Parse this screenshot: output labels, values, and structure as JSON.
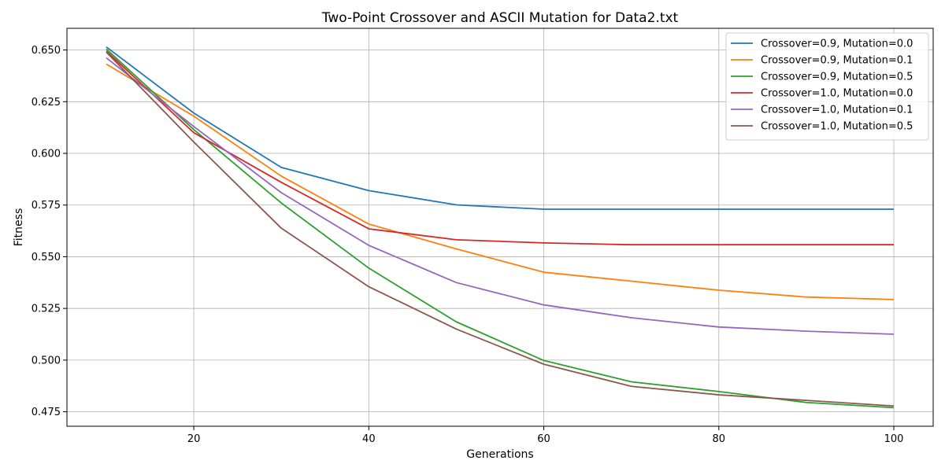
{
  "chart_data": {
    "type": "line",
    "title": "Two-Point Crossover and ASCII Mutation for Data2.txt",
    "xlabel": "Generations",
    "ylabel": "Fitness",
    "xlim": [
      5.5,
      104.5
    ],
    "ylim": [
      0.468,
      0.6605
    ],
    "xticks": [
      20,
      40,
      60,
      80,
      100
    ],
    "yticks": [
      0.475,
      0.5,
      0.525,
      0.55,
      0.575,
      0.6,
      0.625,
      0.65
    ],
    "ytick_labels": [
      "0.475",
      "0.500",
      "0.525",
      "0.550",
      "0.575",
      "0.600",
      "0.625",
      "0.650"
    ],
    "grid": true,
    "legend_position": "top-right",
    "x": [
      10,
      20,
      30,
      40,
      50,
      60,
      70,
      80,
      90,
      100
    ],
    "series": [
      {
        "name": "Crossover=0.9, Mutation=0.0",
        "color": "#1f77b4",
        "values": [
          0.6515,
          0.6195,
          0.5932,
          0.582,
          0.5751,
          0.573,
          0.573,
          0.573,
          0.573,
          0.573
        ]
      },
      {
        "name": "Crossover=0.9, Mutation=0.1",
        "color": "#ff7f0e",
        "values": [
          0.6432,
          0.618,
          0.589,
          0.5658,
          0.5538,
          0.5425,
          0.5382,
          0.5338,
          0.5305,
          0.5293
        ]
      },
      {
        "name": "Crossover=0.9, Mutation=0.5",
        "color": "#2ca02c",
        "values": [
          0.6505,
          0.6115,
          0.576,
          0.5445,
          0.5185,
          0.4998,
          0.4895,
          0.4848,
          0.4795,
          0.477
        ]
      },
      {
        "name": "Crossover=1.0, Mutation=0.0",
        "color": "#d62728",
        "values": [
          0.6495,
          0.61,
          0.586,
          0.5635,
          0.5582,
          0.5567,
          0.5558,
          0.5558,
          0.5558,
          0.5558
        ]
      },
      {
        "name": "Crossover=1.0, Mutation=0.1",
        "color": "#9467bd",
        "values": [
          0.6462,
          0.613,
          0.581,
          0.5555,
          0.5375,
          0.5267,
          0.5205,
          0.516,
          0.514,
          0.5125
        ]
      },
      {
        "name": "Crossover=1.0, Mutation=0.5",
        "color": "#8c564b",
        "values": [
          0.649,
          0.6055,
          0.5638,
          0.5355,
          0.515,
          0.498,
          0.4873,
          0.4832,
          0.4805,
          0.4778
        ]
      }
    ]
  }
}
